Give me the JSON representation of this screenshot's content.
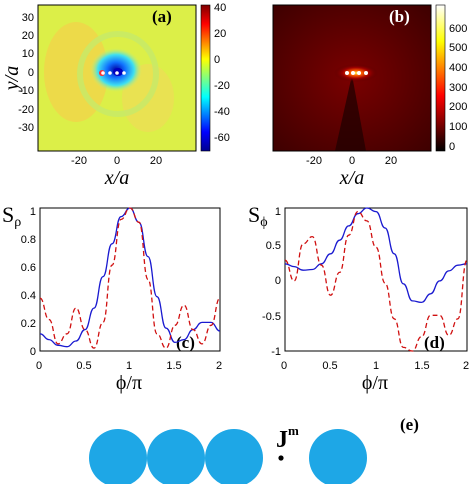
{
  "colors": {
    "solid_line": "#1a1ad0",
    "dashed_line": "#d01010",
    "circle_fill": "#1ea7e6"
  },
  "panels": {
    "a": {
      "label": "(a)",
      "xlabel": "x/a",
      "ylabel": "y/a",
      "xticks": [
        "-20",
        "0",
        "20"
      ],
      "yticks": [
        "30",
        "20",
        "10",
        "0",
        "-10",
        "-20",
        "-30"
      ],
      "colorbar_ticks": [
        "40",
        "20",
        "0",
        "-20",
        "-40",
        "-60"
      ]
    },
    "b": {
      "label": "(b)",
      "xlabel": "x/a",
      "xticks": [
        "-20",
        "0",
        "20"
      ],
      "colorbar_ticks": [
        "600",
        "500",
        "400",
        "300",
        "200",
        "100",
        "0"
      ]
    },
    "c": {
      "label": "(c)",
      "ylabel_main": "S",
      "ylabel_sub": "ρ",
      "xlabel": "ϕ/π",
      "xticks": [
        "0",
        "0.5",
        "1",
        "1.5",
        "2"
      ],
      "yticks": [
        "1",
        "0.8",
        "0.6",
        "0.4",
        "0.2",
        "0"
      ]
    },
    "d": {
      "label": "(d)",
      "ylabel_main": "S",
      "ylabel_sub": "ϕ",
      "xlabel": "ϕ/π",
      "xticks": [
        "0",
        "0.5",
        "1",
        "1.5",
        "2"
      ],
      "yticks": [
        "1",
        "0.5",
        "0",
        "-0.5",
        "-1"
      ]
    },
    "e": {
      "label": "(e)",
      "source_main": "J",
      "source_sup": "m"
    }
  },
  "chart_data": [
    {
      "type": "line",
      "panel": "c",
      "xlim": [
        0,
        2
      ],
      "ylim": [
        0,
        1
      ],
      "x": [
        0,
        0.1,
        0.2,
        0.3,
        0.4,
        0.5,
        0.6,
        0.7,
        0.8,
        0.9,
        1.0,
        1.1,
        1.2,
        1.3,
        1.4,
        1.5,
        1.6,
        1.7,
        1.8,
        1.9,
        2.0
      ],
      "series": [
        {
          "style": "solid",
          "values": [
            0.12,
            0.08,
            0.04,
            0.03,
            0.07,
            0.15,
            0.3,
            0.52,
            0.75,
            0.94,
            1.0,
            0.9,
            0.66,
            0.38,
            0.16,
            0.06,
            0.08,
            0.15,
            0.2,
            0.2,
            0.14
          ]
        },
        {
          "style": "dashed",
          "values": [
            0.37,
            0.22,
            0.05,
            0.12,
            0.3,
            0.15,
            0.02,
            0.2,
            0.6,
            0.92,
            1.0,
            0.9,
            0.5,
            0.12,
            0.02,
            0.18,
            0.32,
            0.15,
            0.05,
            0.18,
            0.37
          ]
        }
      ]
    },
    {
      "type": "line",
      "panel": "d",
      "xlim": [
        0,
        2
      ],
      "ylim": [
        -1,
        1
      ],
      "x": [
        0,
        0.1,
        0.2,
        0.3,
        0.4,
        0.5,
        0.6,
        0.7,
        0.8,
        0.9,
        1.0,
        1.1,
        1.2,
        1.3,
        1.4,
        1.5,
        1.6,
        1.7,
        1.8,
        1.9,
        2.0
      ],
      "series": [
        {
          "style": "solid",
          "values": [
            0.22,
            0.18,
            0.13,
            0.14,
            0.22,
            0.36,
            0.55,
            0.75,
            0.92,
            1.0,
            0.95,
            0.72,
            0.36,
            -0.06,
            -0.3,
            -0.32,
            -0.2,
            -0.02,
            0.12,
            0.2,
            0.22
          ]
        },
        {
          "style": "dashed",
          "values": [
            0.27,
            -0.02,
            0.5,
            0.6,
            0.2,
            -0.22,
            0.1,
            0.62,
            0.95,
            0.82,
            0.45,
            -0.05,
            -0.55,
            -0.95,
            -1.0,
            -0.8,
            -0.5,
            -0.5,
            -0.78,
            -0.55,
            0.27
          ]
        }
      ]
    }
  ]
}
